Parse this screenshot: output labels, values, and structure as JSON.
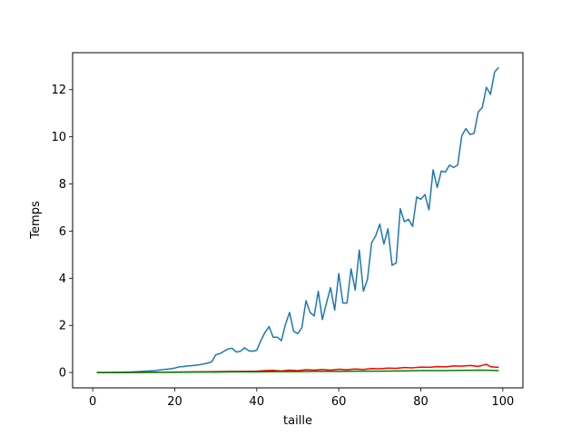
{
  "chart_data": {
    "type": "line",
    "xlabel": "taille",
    "ylabel": "Temps",
    "xlim": [
      -4.9,
      104.9
    ],
    "ylim": [
      -0.65,
      13.57
    ],
    "xticks": [
      0,
      20,
      40,
      60,
      80,
      100
    ],
    "yticks": [
      0,
      2,
      4,
      6,
      8,
      10,
      12
    ],
    "grid": false,
    "legend": "none",
    "series": [
      {
        "color": "#1f77b4",
        "x": [
          1,
          2,
          3,
          4,
          5,
          6,
          7,
          8,
          9,
          10,
          11,
          12,
          13,
          14,
          15,
          16,
          17,
          18,
          19,
          20,
          21,
          22,
          23,
          24,
          25,
          26,
          27,
          28,
          29,
          30,
          31,
          32,
          33,
          34,
          35,
          36,
          37,
          38,
          39,
          40,
          41,
          42,
          43,
          44,
          45,
          46,
          47,
          48,
          49,
          50,
          51,
          52,
          53,
          54,
          55,
          56,
          57,
          58,
          59,
          60,
          61,
          62,
          63,
          64,
          65,
          66,
          67,
          68,
          69,
          70,
          71,
          72,
          73,
          74,
          75,
          76,
          77,
          78,
          79,
          80,
          81,
          82,
          83,
          84,
          85,
          86,
          87,
          88,
          89,
          90,
          91,
          92,
          93,
          94,
          95,
          96,
          97,
          98,
          99
        ],
        "y": [
          0.0,
          0.0,
          0.0,
          0.0,
          0.01,
          0.01,
          0.01,
          0.02,
          0.02,
          0.03,
          0.04,
          0.05,
          0.06,
          0.07,
          0.08,
          0.1,
          0.12,
          0.14,
          0.16,
          0.19,
          0.24,
          0.25,
          0.28,
          0.29,
          0.31,
          0.33,
          0.36,
          0.4,
          0.45,
          0.75,
          0.8,
          0.9,
          1.0,
          1.03,
          0.87,
          0.9,
          1.05,
          0.93,
          0.9,
          0.95,
          1.35,
          1.7,
          1.95,
          1.5,
          1.5,
          1.35,
          2.05,
          2.55,
          1.75,
          1.65,
          1.9,
          3.05,
          2.55,
          2.4,
          3.45,
          2.25,
          2.95,
          3.6,
          2.65,
          4.2,
          2.95,
          2.95,
          4.4,
          3.5,
          5.2,
          3.45,
          3.95,
          5.5,
          5.8,
          6.3,
          5.45,
          6.1,
          4.55,
          4.65,
          6.95,
          6.4,
          6.5,
          6.2,
          7.45,
          7.35,
          7.55,
          6.9,
          8.6,
          7.85,
          8.55,
          8.5,
          8.8,
          8.7,
          8.8,
          10.05,
          10.35,
          10.1,
          10.15,
          11.05,
          11.25,
          12.1,
          11.8,
          12.75,
          12.95
        ]
      },
      {
        "color": "#ff0000",
        "x": [
          1,
          5,
          10,
          15,
          20,
          25,
          30,
          35,
          40,
          42,
          44,
          46,
          48,
          50,
          52,
          54,
          56,
          58,
          60,
          62,
          64,
          66,
          68,
          70,
          72,
          74,
          76,
          78,
          80,
          82,
          84,
          86,
          88,
          90,
          92,
          94,
          96,
          97,
          98,
          99
        ],
        "y": [
          0.0,
          0.0,
          0.01,
          0.01,
          0.02,
          0.03,
          0.04,
          0.05,
          0.06,
          0.08,
          0.09,
          0.07,
          0.1,
          0.08,
          0.12,
          0.1,
          0.13,
          0.1,
          0.14,
          0.12,
          0.15,
          0.13,
          0.17,
          0.16,
          0.19,
          0.18,
          0.21,
          0.2,
          0.23,
          0.22,
          0.25,
          0.24,
          0.28,
          0.27,
          0.3,
          0.26,
          0.35,
          0.25,
          0.23,
          0.22
        ]
      },
      {
        "color": "#008000",
        "x": [
          1,
          5,
          10,
          15,
          20,
          25,
          30,
          35,
          40,
          45,
          50,
          55,
          60,
          65,
          70,
          75,
          80,
          85,
          90,
          95,
          99
        ],
        "y": [
          0.0,
          0.0,
          0.0,
          0.01,
          0.01,
          0.02,
          0.02,
          0.03,
          0.03,
          0.04,
          0.04,
          0.05,
          0.05,
          0.06,
          0.06,
          0.07,
          0.08,
          0.08,
          0.09,
          0.1,
          0.08
        ]
      }
    ]
  }
}
